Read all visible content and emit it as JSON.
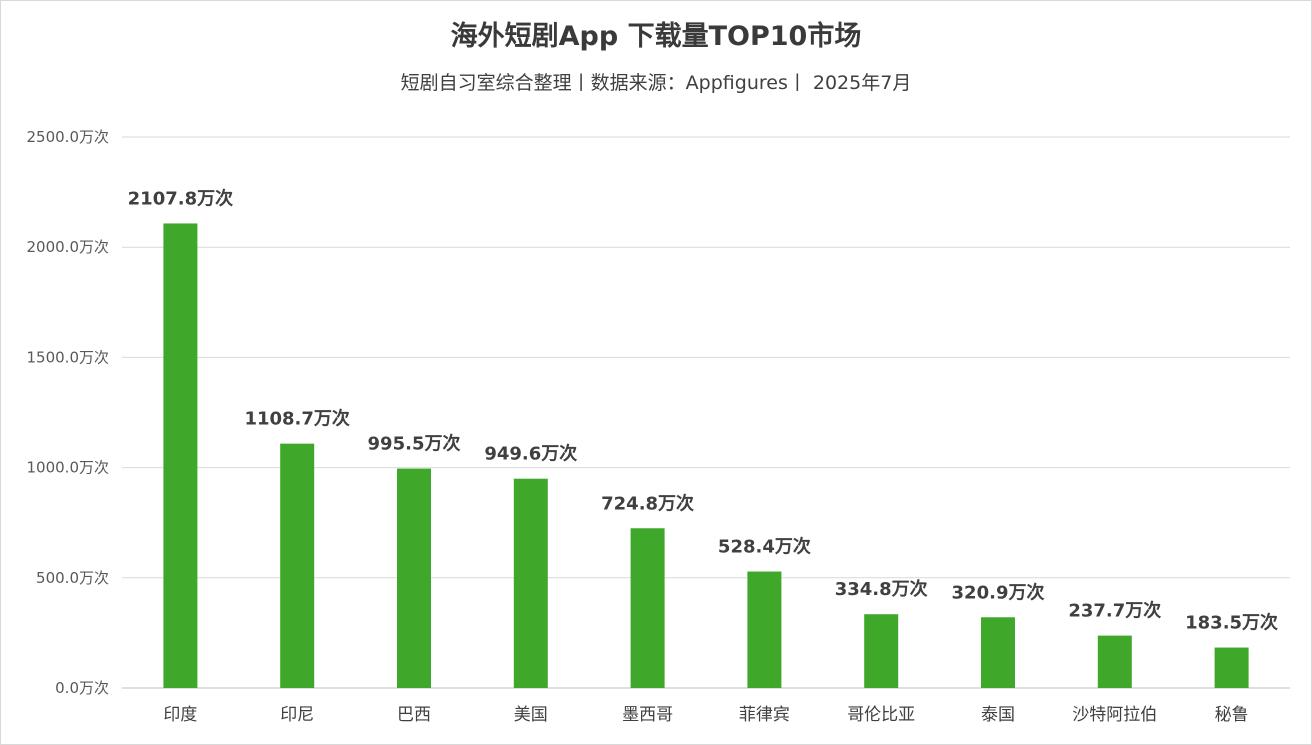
{
  "chart_data": {
    "type": "bar",
    "title": "海外短剧App 下载量TOP10市场",
    "subtitle": "短剧自习室综合整理丨数据来源：Appfigures丨 2025年7月",
    "categories": [
      "印度",
      "印尼",
      "巴西",
      "美国",
      "墨西哥",
      "菲律宾",
      "哥伦比亚",
      "泰国",
      "沙特阿拉伯",
      "秘鲁"
    ],
    "values": [
      2107.8,
      1108.7,
      995.5,
      949.6,
      724.8,
      528.4,
      334.8,
      320.9,
      237.7,
      183.5
    ],
    "data_labels": [
      "2107.8万次",
      "1108.7万次",
      "995.5万次",
      "949.6万次",
      "724.8万次",
      "528.4万次",
      "334.8万次",
      "320.9万次",
      "237.7万次",
      "183.5万次"
    ],
    "y_ticks": [
      0,
      500,
      1000,
      1500,
      2000,
      2500
    ],
    "y_tick_labels": [
      "0.0万次",
      "500.0万次",
      "1000.0万次",
      "1500.0万次",
      "2000.0万次",
      "2500.0万次"
    ],
    "ylim": [
      0,
      2500
    ],
    "xlabel": "",
    "ylabel": "",
    "grid": true,
    "legend": "none",
    "bar_color": "#3fa72a"
  }
}
